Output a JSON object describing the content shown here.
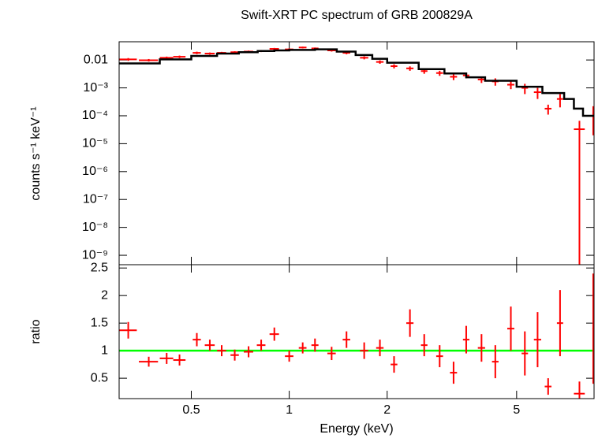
{
  "chart_data": [
    {
      "type": "spectrum",
      "title": "Swift-XRT PC spectrum of GRB 200829A",
      "y_label": "counts s⁻¹ keV⁻¹",
      "xlim": [
        0.3,
        8.65
      ],
      "xticks": [
        0.5,
        1,
        2,
        5
      ],
      "log_x": true,
      "ylim": [
        4.6e-10,
        0.045
      ],
      "log_y": true,
      "yticks": [
        {
          "value": 0.01,
          "label": "0.01"
        },
        {
          "value": 0.001,
          "label": "10⁻³"
        },
        {
          "value": 0.0001,
          "label": "10⁻⁴"
        },
        {
          "value": 1e-05,
          "label": "10⁻⁵"
        },
        {
          "value": 1e-06,
          "label": "10⁻⁶"
        },
        {
          "value": 1e-07,
          "label": "10⁻⁷"
        },
        {
          "value": 1e-08,
          "label": "10⁻⁸"
        },
        {
          "value": 1e-09,
          "label": "10⁻⁹"
        }
      ],
      "series": [
        {
          "color": "#ff0000",
          "x": [
            0.32,
            0.37,
            0.42,
            0.46,
            0.52,
            0.57,
            0.62,
            0.68,
            0.75,
            0.82,
            0.9,
            1.0,
            1.1,
            1.2,
            1.35,
            1.5,
            1.7,
            1.9,
            2.1,
            2.35,
            2.6,
            2.9,
            3.2,
            3.5,
            3.9,
            4.3,
            4.8,
            5.3,
            5.8,
            6.25,
            6.8,
            7.8,
            8.6
          ],
          "xerr": [
            0.02,
            0.025,
            0.02,
            0.02,
            0.015,
            0.02,
            0.02,
            0.02,
            0.025,
            0.025,
            0.03,
            0.03,
            0.03,
            0.03,
            0.04,
            0.04,
            0.05,
            0.05,
            0.05,
            0.06,
            0.06,
            0.07,
            0.08,
            0.08,
            0.1,
            0.1,
            0.12,
            0.12,
            0.15,
            0.15,
            0.15,
            0.3,
            0.05
          ],
          "values": [
            0.0105,
            0.0098,
            0.012,
            0.013,
            0.018,
            0.017,
            0.018,
            0.019,
            0.02,
            0.021,
            0.025,
            0.024,
            0.028,
            0.026,
            0.022,
            0.018,
            0.012,
            0.0085,
            0.006,
            0.005,
            0.004,
            0.0034,
            0.0025,
            0.0028,
            0.002,
            0.0017,
            0.0013,
            0.001,
            0.0007,
            0.00018,
            0.0004,
            3.3e-05,
            0.00012
          ],
          "yerr": [
            0.0012,
            0.001,
            0.0012,
            0.0013,
            0.0018,
            0.0015,
            0.0015,
            0.0016,
            0.0017,
            0.0018,
            0.002,
            0.002,
            0.002,
            0.002,
            0.002,
            0.002,
            0.0015,
            0.0012,
            0.001,
            0.0009,
            0.0008,
            0.0007,
            0.0006,
            0.0006,
            0.0005,
            0.0005,
            0.0004,
            0.0004,
            0.0003,
            7e-05,
            0.0002,
            3.3e-05,
            0.0001
          ]
        },
        {
          "color": "#000000",
          "step": true,
          "x": [
            0.3,
            0.4,
            0.5,
            0.6,
            0.7,
            0.8,
            0.9,
            1.0,
            1.2,
            1.4,
            1.6,
            1.8,
            2.0,
            2.5,
            3,
            3.5,
            4,
            5,
            6,
            7,
            7.5,
            8
          ],
          "values": [
            0.0075,
            0.0105,
            0.014,
            0.017,
            0.019,
            0.021,
            0.022,
            0.023,
            0.024,
            0.02,
            0.015,
            0.011,
            0.008,
            0.0047,
            0.0033,
            0.0024,
            0.0018,
            0.0011,
            0.00065,
            0.0004,
            0.00018,
            0.0001
          ]
        }
      ]
    },
    {
      "type": "ratio",
      "x_label": "Energy (keV)",
      "y_label": "ratio",
      "xlim": [
        0.3,
        8.65
      ],
      "xticks": [
        0.5,
        1,
        2,
        5
      ],
      "log_x": true,
      "ylim": [
        0.13,
        2.56
      ],
      "yticks": [
        0.5,
        1,
        1.5,
        2,
        2.5
      ],
      "reference": 1,
      "reference_color": "#00ff00",
      "series": [
        {
          "color": "#ff0000",
          "values": [
            1.37,
            0.8,
            0.86,
            0.83,
            1.2,
            1.1,
            1.0,
            0.92,
            0.98,
            1.1,
            1.3,
            0.9,
            1.05,
            1.1,
            0.95,
            1.2,
            1.0,
            1.05,
            0.75,
            1.5,
            1.1,
            0.9,
            0.6,
            1.2,
            1.05,
            0.8,
            1.4,
            0.95,
            1.2,
            0.35,
            1.5,
            0.22,
            1.4
          ],
          "yerr": [
            0.15,
            0.09,
            0.1,
            0.1,
            0.12,
            0.1,
            0.1,
            0.1,
            0.1,
            0.1,
            0.12,
            0.1,
            0.1,
            0.12,
            0.12,
            0.15,
            0.15,
            0.15,
            0.15,
            0.25,
            0.2,
            0.2,
            0.2,
            0.25,
            0.25,
            0.3,
            0.4,
            0.4,
            0.5,
            0.15,
            0.6,
            0.22,
            1.0
          ]
        }
      ]
    }
  ]
}
